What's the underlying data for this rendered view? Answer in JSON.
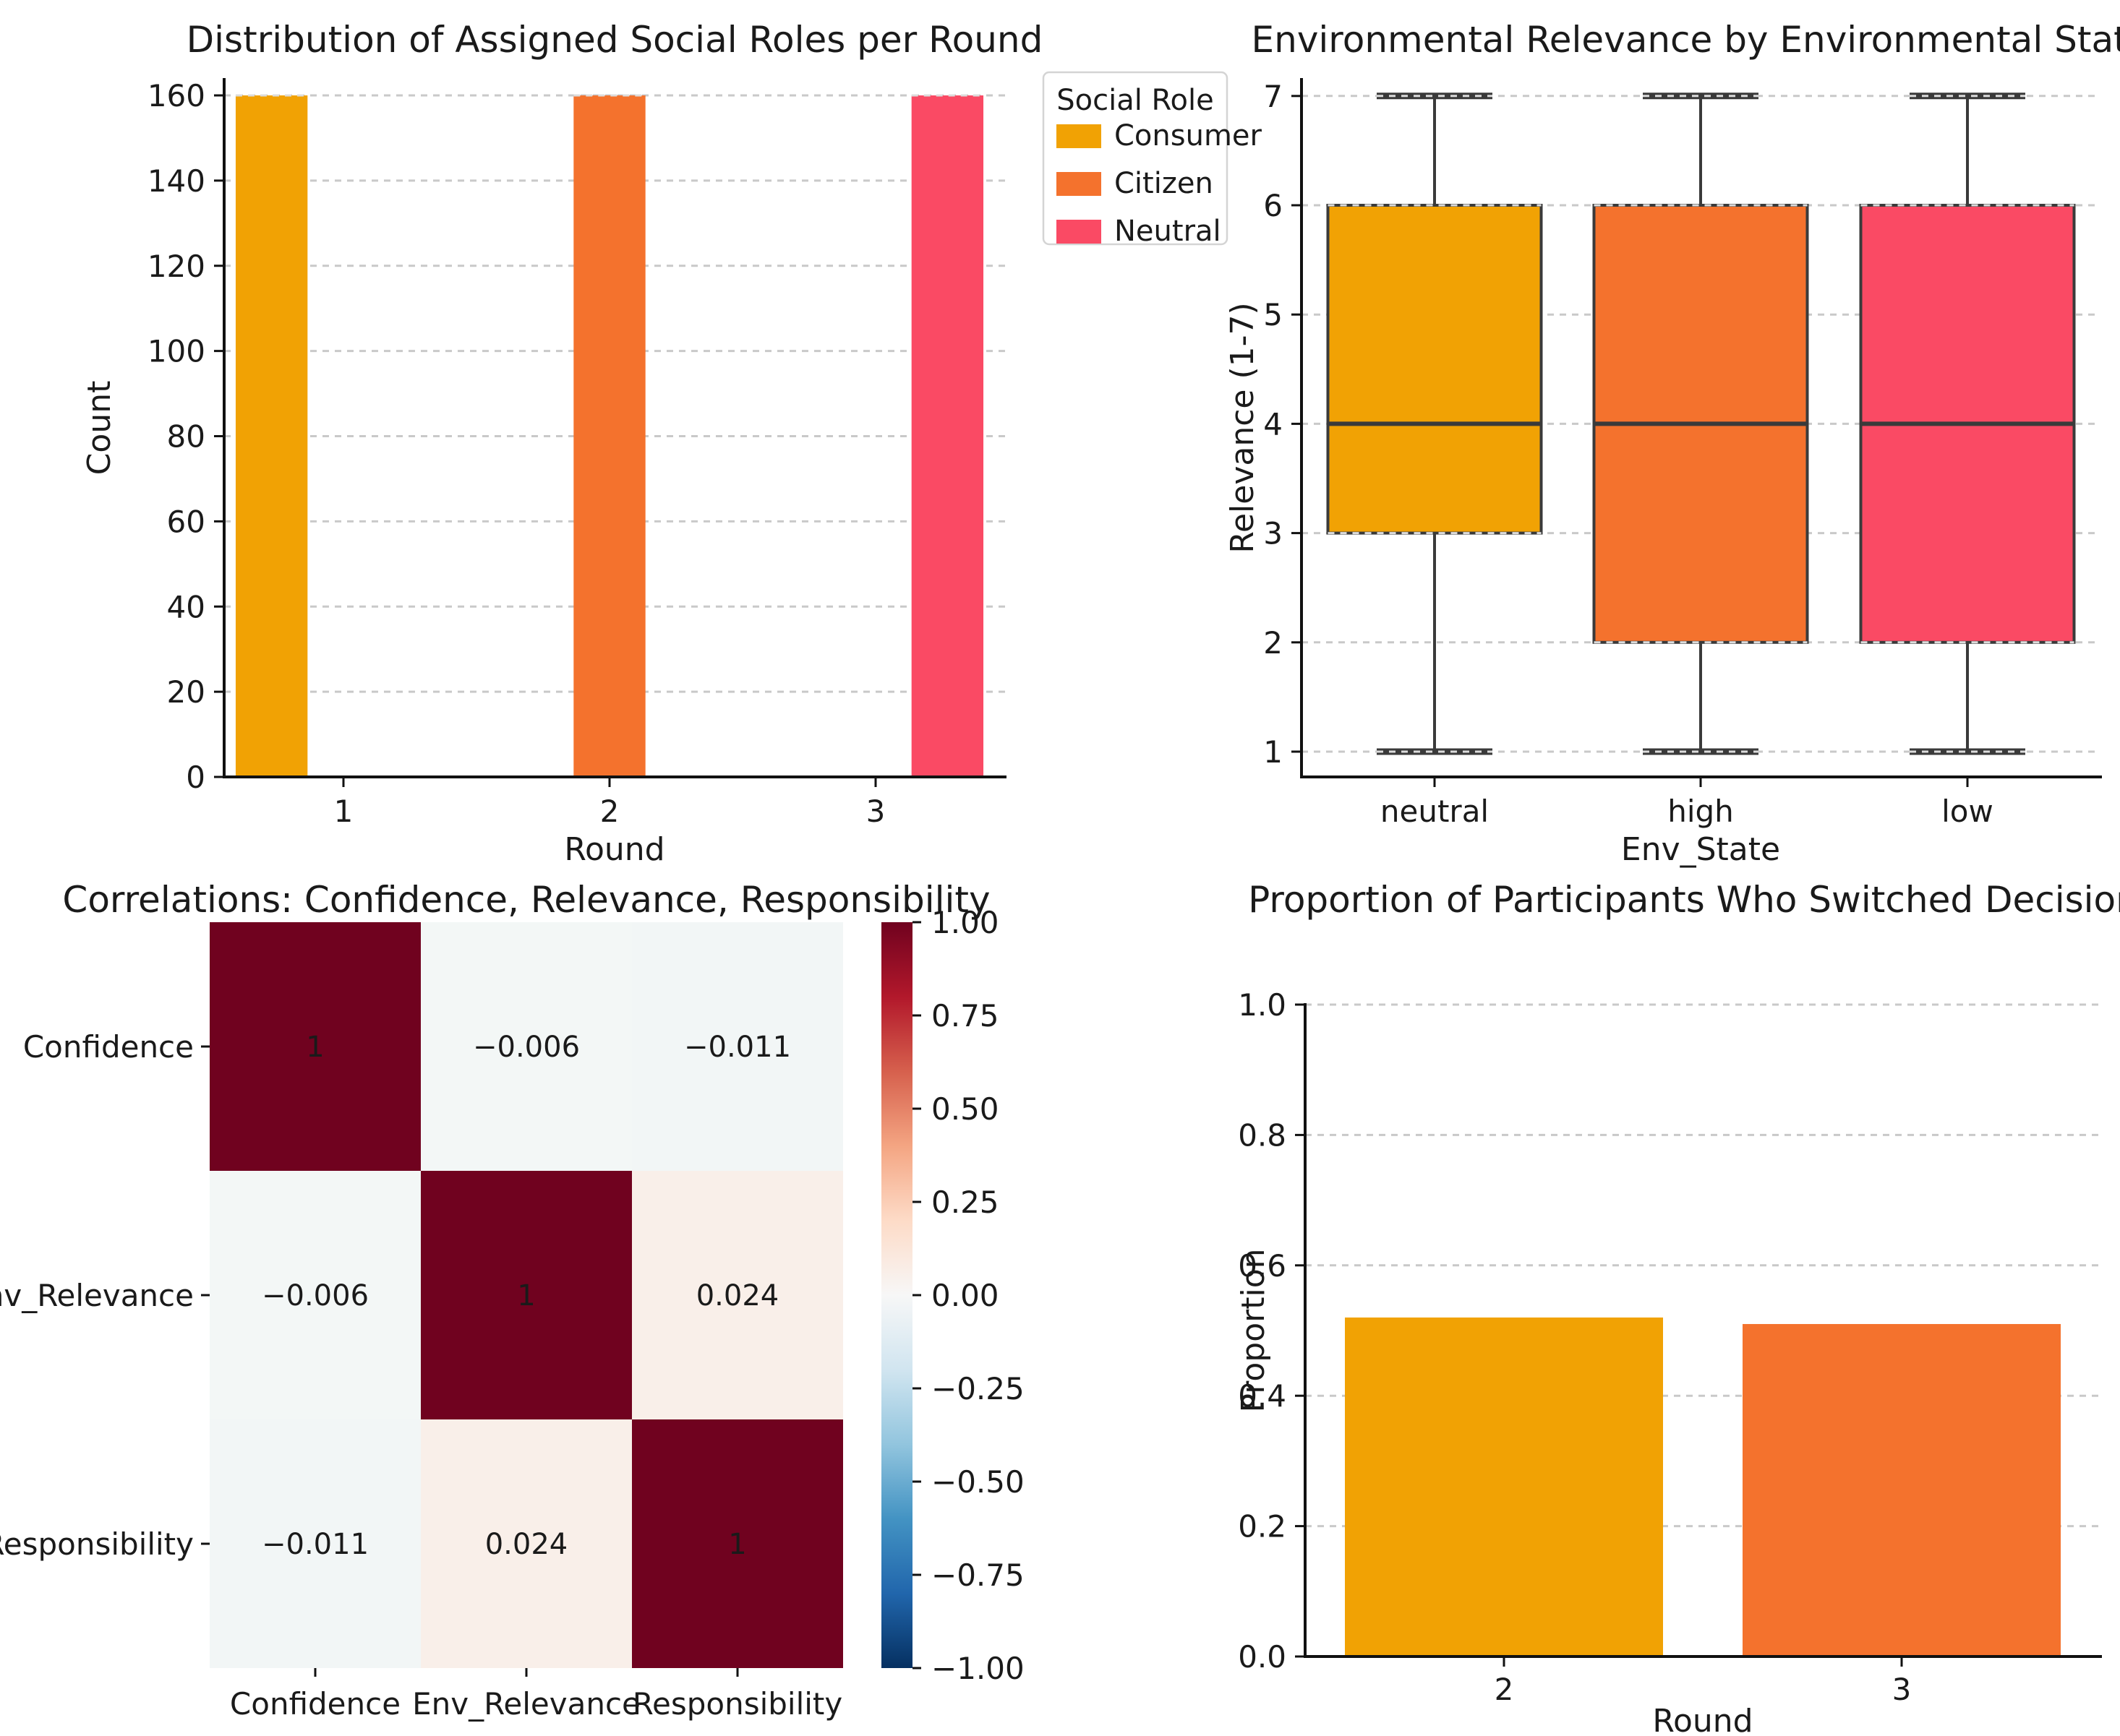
{
  "figure": {
    "background": "#ffffff",
    "text_color": "#1a1a1a",
    "grid_color": "#c9c9c9"
  },
  "palette": {
    "consumer": "#F1A204",
    "citizen": "#F4722D",
    "neutral": "#FA4A64"
  },
  "chart_data": [
    {
      "id": "roles_histogram",
      "type": "bar",
      "title": "Distribution of Assigned Social Roles per Round",
      "xlabel": "Round",
      "ylabel": "Count",
      "ylim": [
        0,
        168
      ],
      "grid": "dashed-horizontal",
      "bar_width_units": 0.27,
      "bars": [
        {
          "round": 1,
          "role": "Consumer",
          "value": 160,
          "color": "#F1A204",
          "offset": -0.27
        },
        {
          "round": 2,
          "role": "Citizen",
          "value": 160,
          "color": "#F4722D",
          "offset": 0
        },
        {
          "round": 3,
          "role": "Neutral",
          "value": 160,
          "color": "#FA4A64",
          "offset": 0.27
        }
      ],
      "xticks": [
        {
          "v": 1,
          "label": "1"
        },
        {
          "v": 2,
          "label": "2"
        },
        {
          "v": 3,
          "label": "3"
        }
      ],
      "yticks": [
        {
          "v": 0,
          "label": "0"
        },
        {
          "v": 20,
          "label": "20"
        },
        {
          "v": 40,
          "label": "40"
        },
        {
          "v": 60,
          "label": "60"
        },
        {
          "v": 80,
          "label": "80"
        },
        {
          "v": 100,
          "label": "100"
        },
        {
          "v": 120,
          "label": "120"
        },
        {
          "v": 140,
          "label": "140"
        },
        {
          "v": 160,
          "label": "160"
        }
      ],
      "legend": {
        "title": "Social Role",
        "position": "outside-right",
        "entries": [
          {
            "label": "Consumer",
            "color": "#F1A204"
          },
          {
            "label": "Citizen",
            "color": "#F4722D"
          },
          {
            "label": "Neutral",
            "color": "#FA4A64"
          }
        ]
      }
    },
    {
      "id": "relevance_boxplot",
      "type": "box",
      "title": "Environmental Relevance by Environmental State",
      "xlabel": "Env_State",
      "ylabel": "Relevance (1-7)",
      "categories": [
        "neutral",
        "high",
        "low"
      ],
      "grid": "dashed-horizontal",
      "boxes": [
        {
          "label": "neutral",
          "whisker_low": 1,
          "q1": 3,
          "median": 4,
          "q3": 6,
          "whisker_high": 7,
          "color": "#F1A204"
        },
        {
          "label": "high",
          "whisker_low": 1,
          "q1": 2,
          "median": 4,
          "q3": 6,
          "whisker_high": 7,
          "color": "#F4722D"
        },
        {
          "label": "low",
          "whisker_low": 1,
          "q1": 2,
          "median": 4,
          "q3": 6,
          "whisker_high": 7,
          "color": "#FA4A64"
        }
      ],
      "yticks": [
        {
          "v": 1,
          "label": "1"
        },
        {
          "v": 2,
          "label": "2"
        },
        {
          "v": 3,
          "label": "3"
        },
        {
          "v": 4,
          "label": "4"
        },
        {
          "v": 5,
          "label": "5"
        },
        {
          "v": 6,
          "label": "6"
        },
        {
          "v": 7,
          "label": "7"
        }
      ]
    },
    {
      "id": "correlation_heatmap",
      "type": "heatmap",
      "title": "Correlations: Confidence, Relevance, Responsibility",
      "labels": [
        "Confidence",
        "Env_Relevance",
        "Responsibility"
      ],
      "matrix": [
        [
          1,
          -0.006,
          -0.011
        ],
        [
          -0.006,
          1,
          0.024
        ],
        [
          -0.011,
          0.024,
          1
        ]
      ],
      "cell_text": [
        [
          "1",
          "−0.006",
          "−0.011"
        ],
        [
          "−0.006",
          "1",
          "0.024"
        ],
        [
          "−0.011",
          "0.024",
          "1"
        ]
      ],
      "cell_colors": [
        [
          "#70021F",
          "#f3f7f6",
          "#f2f6f6"
        ],
        [
          "#f3f7f6",
          "#70021F",
          "#f9efe9"
        ],
        [
          "#f2f6f6",
          "#f9efe9",
          "#70021F"
        ]
      ],
      "annotation_colors": {
        "diagonal": "#ffffff",
        "off_diagonal": "#1a1a1a"
      },
      "colorbar": {
        "cmap": "RdBu_r",
        "range": [
          -1,
          1
        ],
        "ticks": [
          {
            "v": 1,
            "label": "1.00"
          },
          {
            "v": 0.75,
            "label": "0.75"
          },
          {
            "v": 0.5,
            "label": "0.50"
          },
          {
            "v": 0.25,
            "label": "0.25"
          },
          {
            "v": 0,
            "label": "0.00"
          },
          {
            "v": -0.25,
            "label": "−0.25"
          },
          {
            "v": -0.5,
            "label": "−0.50"
          },
          {
            "v": -0.75,
            "label": "−0.75"
          },
          {
            "v": -1,
            "label": "−1.00"
          }
        ],
        "stops": [
          {
            "o": 0.0,
            "c": "#70021F"
          },
          {
            "o": 0.1,
            "c": "#b2182b"
          },
          {
            "o": 0.2,
            "c": "#d6604d"
          },
          {
            "o": 0.3,
            "c": "#f4a582"
          },
          {
            "o": 0.4,
            "c": "#fddbc7"
          },
          {
            "o": 0.5,
            "c": "#f7f7f7"
          },
          {
            "o": 0.6,
            "c": "#d1e5f0"
          },
          {
            "o": 0.7,
            "c": "#92c5de"
          },
          {
            "o": 0.8,
            "c": "#4393c3"
          },
          {
            "o": 0.9,
            "c": "#2166ac"
          },
          {
            "o": 1.0,
            "c": "#053061"
          }
        ]
      }
    },
    {
      "id": "switch_proportion",
      "type": "bar",
      "title": "Proportion of Participants Who Switched Decisions",
      "xlabel": "Round",
      "ylabel": "Proportion",
      "ylim": [
        0,
        1.0
      ],
      "grid": "dashed-horizontal",
      "categories": [
        "2",
        "3"
      ],
      "values": [
        0.52,
        0.51
      ],
      "colors": [
        "#F1A204",
        "#F4722D"
      ],
      "yticks": [
        {
          "v": 0,
          "label": "0.0"
        },
        {
          "v": 0.2,
          "label": "0.2"
        },
        {
          "v": 0.4,
          "label": "0.4"
        },
        {
          "v": 0.6,
          "label": "0.6"
        },
        {
          "v": 0.8,
          "label": "0.8"
        },
        {
          "v": 1,
          "label": "1.0"
        }
      ]
    }
  ]
}
